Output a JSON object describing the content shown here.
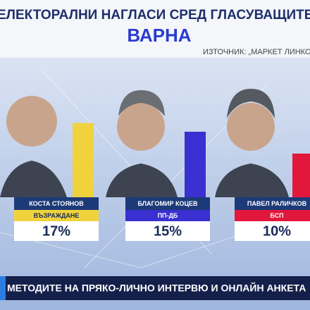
{
  "chart_data": {
    "type": "bar",
    "title": "ЕЛЕКТОРАЛНИ НАГЛАСИ СРЕД ГЛАСУВАЩИТЕ",
    "subtitle": "ВАРНА",
    "source": "ИЗТОЧНИК: „МАРКЕТ ЛИНКС“",
    "categories": [
      "КОСТА СТОЯНОВ",
      "БЛАГОМИР КОЦЕВ",
      "ПАВЕЛ РАЛИЧКОВ"
    ],
    "parties": [
      "ВЪЗРАЖДАНЕ",
      "ПП-ДБ",
      "БСП"
    ],
    "values": [
      17,
      15,
      10
    ],
    "value_labels": [
      "17%",
      "15%",
      "10%"
    ],
    "colors": [
      "#f0d33c",
      "#3a2fd0",
      "#e2173c"
    ],
    "party_text_colors": [
      "#1a2a5a",
      "#ffffff",
      "#ffffff"
    ]
  },
  "ticker": "МЕТОДИТЕ НА ПРЯКО-ЛИЧНО ИНТЕРВЮ И ОНЛАЙН АНКЕТА"
}
